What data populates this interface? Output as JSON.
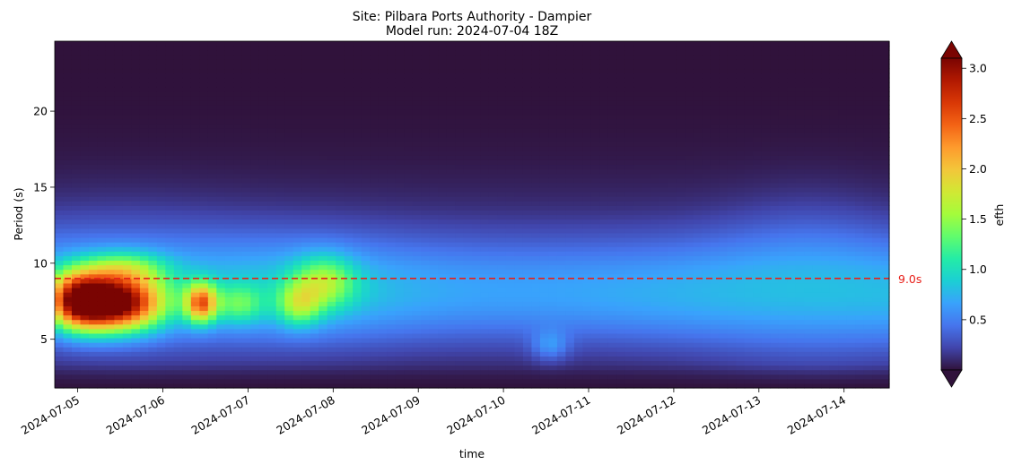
{
  "chart_data": {
    "type": "heatmap",
    "title_line1": "Site: Pilbara Ports Authority - Dampier",
    "title_line2": "Model run: 2024-07-04 18Z",
    "xlabel": "time",
    "ylabel": "Period (s)",
    "colorbar_label": "efth",
    "x_tick_labels": [
      "2024-07-05",
      "2024-07-06",
      "2024-07-07",
      "2024-07-08",
      "2024-07-09",
      "2024-07-10",
      "2024-07-11",
      "2024-07-12",
      "2024-07-13",
      "2024-07-14"
    ],
    "y_ticks": [
      5,
      10,
      15,
      20
    ],
    "y_tick_labels": [
      "5",
      "10",
      "15",
      "20"
    ],
    "ylim": [
      1.8,
      24.6
    ],
    "xlim_days": [
      -0.27,
      9.53
    ],
    "colorbar_ticks": [
      0.5,
      1.0,
      1.5,
      2.0,
      2.5,
      3.0
    ],
    "colorbar_tick_labels": [
      "0.5",
      "1.0",
      "1.5",
      "2.0",
      "2.5",
      "3.0"
    ],
    "clim": [
      0.0,
      3.1
    ],
    "colorbar_extend": "both",
    "colormap": "turbo",
    "reference_line": {
      "period": 9.0,
      "label": "9.0s",
      "color": "#e8201a",
      "style": "dashed"
    },
    "features": [
      {
        "t": 0.45,
        "p": 7.4,
        "st": 0.38,
        "sp": 1.25,
        "a": 2.6
      },
      {
        "t": 0.0,
        "p": 7.6,
        "st": 0.25,
        "sp": 1.3,
        "a": 1.7
      },
      {
        "t": 1.45,
        "p": 7.4,
        "st": 0.13,
        "sp": 0.9,
        "a": 1.7
      },
      {
        "t": 0.55,
        "p": 9.7,
        "st": 0.35,
        "sp": 0.8,
        "a": 0.7
      },
      {
        "t": 1.9,
        "p": 7.3,
        "st": 0.2,
        "sp": 0.9,
        "a": 0.6
      },
      {
        "t": 2.6,
        "p": 7.3,
        "st": 0.18,
        "sp": 1.0,
        "a": 0.8
      },
      {
        "t": 2.9,
        "p": 8.8,
        "st": 0.25,
        "sp": 1.2,
        "a": 0.8
      },
      {
        "t": 5.55,
        "p": 4.6,
        "st": 0.15,
        "sp": 0.7,
        "a": 0.35
      }
    ]
  }
}
